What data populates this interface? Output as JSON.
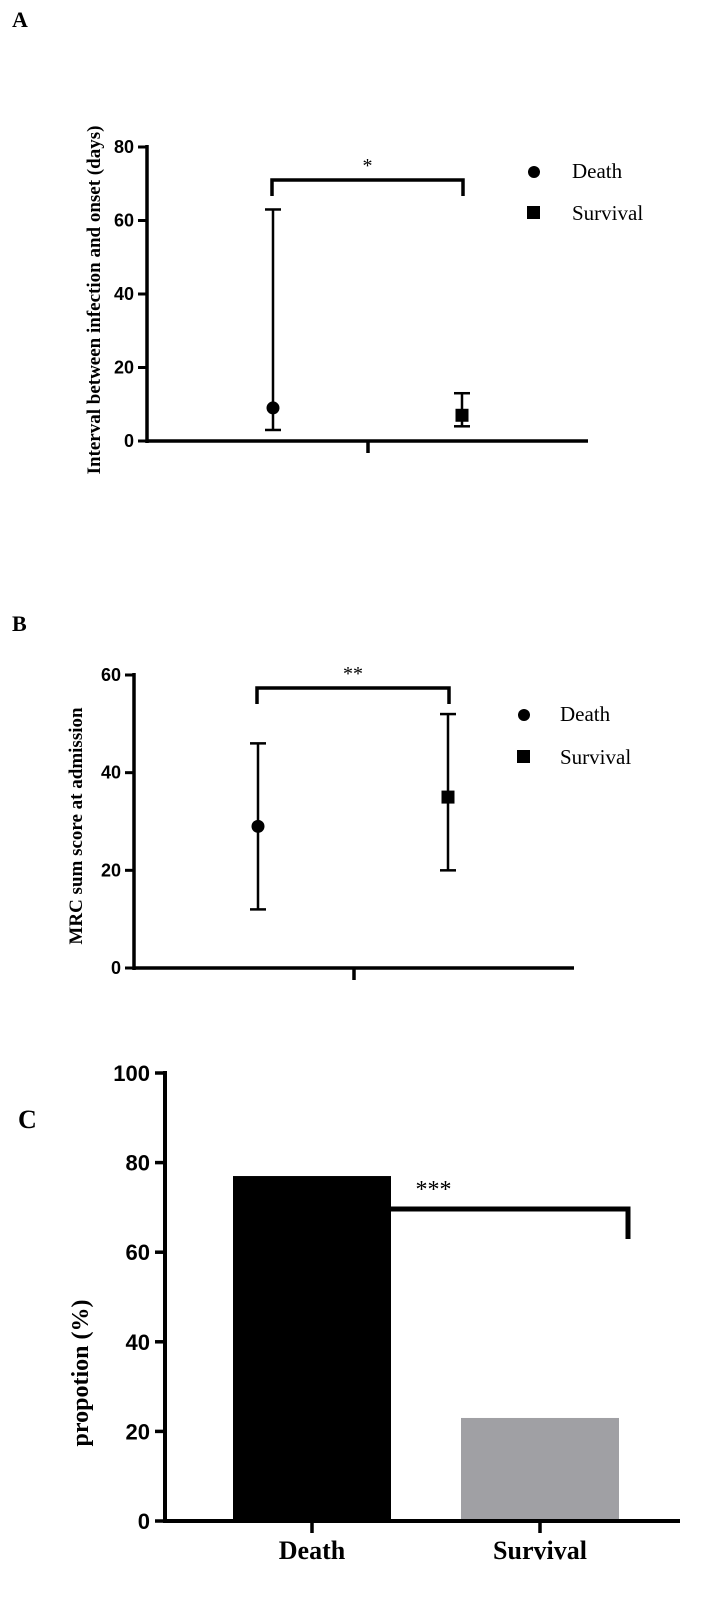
{
  "chart_data": [
    {
      "panel": "A",
      "type": "scatter",
      "ylabel": "Interval between infection and onset (days)",
      "ylim": [
        0,
        80
      ],
      "yticks": [
        0,
        20,
        40,
        60,
        80
      ],
      "series": [
        {
          "name": "Death",
          "marker": "circle",
          "value": 9,
          "low": 3,
          "high": 63
        },
        {
          "name": "Survival",
          "marker": "square",
          "value": 7,
          "low": 4,
          "high": 13
        }
      ],
      "significance": "*",
      "legend_position": "top-right",
      "grid": false
    },
    {
      "panel": "B",
      "type": "scatter",
      "ylabel": "MRC sum score at admission",
      "ylim": [
        0,
        60
      ],
      "yticks": [
        0,
        20,
        40,
        60
      ],
      "series": [
        {
          "name": "Death",
          "marker": "circle",
          "value": 29,
          "low": 12,
          "high": 46
        },
        {
          "name": "Survival",
          "marker": "square",
          "value": 35,
          "low": 20,
          "high": 52
        }
      ],
      "significance": "**",
      "legend_position": "top-right",
      "grid": false
    },
    {
      "panel": "C",
      "type": "bar",
      "ylabel": "propotion (%)",
      "ylim": [
        0,
        100
      ],
      "yticks": [
        0,
        20,
        40,
        60,
        80,
        100
      ],
      "categories": [
        "Death",
        "Survival"
      ],
      "values": [
        77,
        23
      ],
      "bar_colors": [
        "#000000",
        "#a0a0a4"
      ],
      "significance": "***",
      "grid": false
    }
  ]
}
